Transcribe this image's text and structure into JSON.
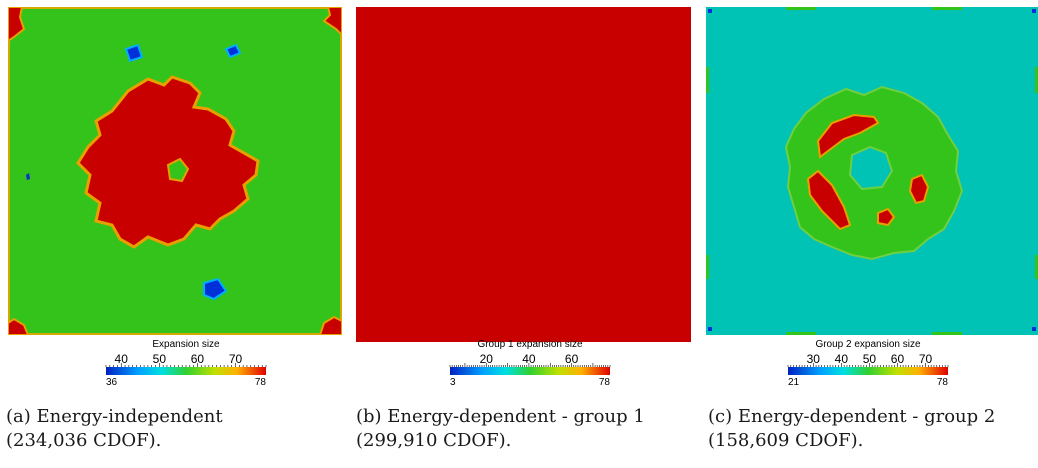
{
  "panels": [
    {
      "id": "a",
      "colorbar": {
        "title": "Expansion size",
        "min": 36,
        "max": 78,
        "ticks": [
          40,
          50,
          60,
          70
        ],
        "min_label": "36",
        "max_label": "78"
      },
      "caption_line1": "(a) Energy-independent",
      "caption_line2": "(234,036 CDOF)."
    },
    {
      "id": "b",
      "colorbar": {
        "title": "Group 1 expansion size",
        "min": 3,
        "max": 78,
        "ticks": [
          20,
          40,
          60
        ],
        "min_label": "3",
        "max_label": "78"
      },
      "caption_line1": "(b) Energy-dependent - group 1",
      "caption_line2": "(299,910 CDOF)."
    },
    {
      "id": "c",
      "colorbar": {
        "title": "Group 2 expansion size",
        "min": 21,
        "max": 78,
        "ticks": [
          30,
          40,
          50,
          60,
          70
        ],
        "min_label": "21",
        "max_label": "78"
      },
      "caption_line1": "(c) Energy-dependent - group 2",
      "caption_line2": "(158,609 CDOF)."
    }
  ],
  "colors": {
    "red": "#c80000",
    "green": "#33c31a",
    "cyan": "#00c2b5",
    "blue": "#0030d8",
    "orange": "#e8a000",
    "yellow_green": "#a8d000"
  }
}
